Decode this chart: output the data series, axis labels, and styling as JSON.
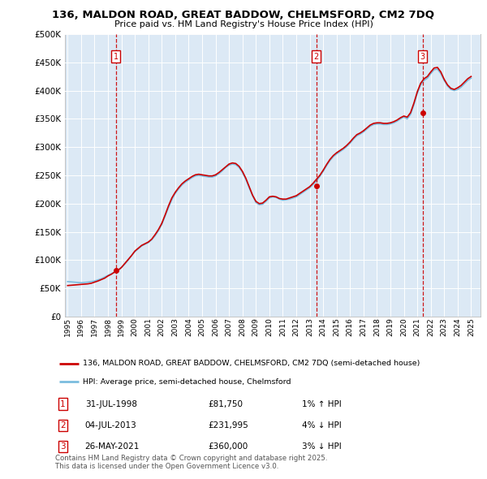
{
  "title": "136, MALDON ROAD, GREAT BADDOW, CHELMSFORD, CM2 7DQ",
  "subtitle": "Price paid vs. HM Land Registry's House Price Index (HPI)",
  "ytick_values": [
    0,
    50000,
    100000,
    150000,
    200000,
    250000,
    300000,
    350000,
    400000,
    450000,
    500000
  ],
  "ylim": [
    0,
    500000
  ],
  "xlim_start": 1994.8,
  "xlim_end": 2025.7,
  "hpi_color": "#7bbcde",
  "price_color": "#cc0000",
  "background_color": "#dce9f5",
  "sale_marker_color": "#cc0000",
  "sale_label_color": "#cc0000",
  "transactions": [
    {
      "num": 1,
      "date": "31-JUL-1998",
      "price": 81750,
      "x": 1998.58,
      "pct": "1%",
      "dir": "↑"
    },
    {
      "num": 2,
      "date": "04-JUL-2013",
      "price": 231995,
      "x": 2013.5,
      "pct": "4%",
      "dir": "↓"
    },
    {
      "num": 3,
      "date": "26-MAY-2021",
      "price": 360000,
      "x": 2021.4,
      "pct": "3%",
      "dir": "↓"
    }
  ],
  "legend_house_label": "136, MALDON ROAD, GREAT BADDOW, CHELMSFORD, CM2 7DQ (semi-detached house)",
  "legend_hpi_label": "HPI: Average price, semi-detached house, Chelmsford",
  "footnote": "Contains HM Land Registry data © Crown copyright and database right 2025.\nThis data is licensed under the Open Government Licence v3.0.",
  "hpi_data_x": [
    1995.0,
    1995.25,
    1995.5,
    1995.75,
    1996.0,
    1996.25,
    1996.5,
    1996.75,
    1997.0,
    1997.25,
    1997.5,
    1997.75,
    1998.0,
    1998.25,
    1998.5,
    1998.75,
    1999.0,
    1999.25,
    1999.5,
    1999.75,
    2000.0,
    2000.25,
    2000.5,
    2000.75,
    2001.0,
    2001.25,
    2001.5,
    2001.75,
    2002.0,
    2002.25,
    2002.5,
    2002.75,
    2003.0,
    2003.25,
    2003.5,
    2003.75,
    2004.0,
    2004.25,
    2004.5,
    2004.75,
    2005.0,
    2005.25,
    2005.5,
    2005.75,
    2006.0,
    2006.25,
    2006.5,
    2006.75,
    2007.0,
    2007.25,
    2007.5,
    2007.75,
    2008.0,
    2008.25,
    2008.5,
    2008.75,
    2009.0,
    2009.25,
    2009.5,
    2009.75,
    2010.0,
    2010.25,
    2010.5,
    2010.75,
    2011.0,
    2011.25,
    2011.5,
    2011.75,
    2012.0,
    2012.25,
    2012.5,
    2012.75,
    2013.0,
    2013.25,
    2013.5,
    2013.75,
    2014.0,
    2014.25,
    2014.5,
    2014.75,
    2015.0,
    2015.25,
    2015.5,
    2015.75,
    2016.0,
    2016.25,
    2016.5,
    2016.75,
    2017.0,
    2017.25,
    2017.5,
    2017.75,
    2018.0,
    2018.25,
    2018.5,
    2018.75,
    2019.0,
    2019.25,
    2019.5,
    2019.75,
    2020.0,
    2020.25,
    2020.5,
    2020.75,
    2021.0,
    2021.25,
    2021.5,
    2021.75,
    2022.0,
    2022.25,
    2022.5,
    2022.75,
    2023.0,
    2023.25,
    2023.5,
    2023.75,
    2024.0,
    2024.25,
    2024.5,
    2024.75,
    2025.0
  ],
  "hpi_data_y": [
    62000,
    61500,
    61000,
    60500,
    60000,
    60500,
    61000,
    62000,
    63000,
    65000,
    67000,
    70000,
    73000,
    76000,
    79000,
    82000,
    87000,
    93000,
    100000,
    108000,
    115000,
    120000,
    125000,
    128000,
    131000,
    136000,
    143000,
    152000,
    163000,
    178000,
    193000,
    207000,
    218000,
    226000,
    233000,
    238000,
    242000,
    246000,
    249000,
    250000,
    249000,
    248000,
    247000,
    247000,
    249000,
    253000,
    258000,
    264000,
    268000,
    270000,
    269000,
    264000,
    255000,
    243000,
    228000,
    214000,
    202000,
    198000,
    199000,
    204000,
    210000,
    212000,
    211000,
    208000,
    206000,
    207000,
    208000,
    210000,
    212000,
    216000,
    220000,
    224000,
    228000,
    234000,
    240000,
    248000,
    257000,
    267000,
    276000,
    283000,
    288000,
    292000,
    296000,
    301000,
    307000,
    314000,
    320000,
    323000,
    327000,
    332000,
    337000,
    340000,
    341000,
    341000,
    340000,
    340000,
    341000,
    343000,
    346000,
    350000,
    353000,
    350000,
    358000,
    375000,
    395000,
    410000,
    418000,
    422000,
    430000,
    437000,
    438000,
    430000,
    418000,
    408000,
    402000,
    400000,
    402000,
    406000,
    412000,
    418000,
    422000
  ],
  "price_data_x": [
    1995.0,
    1995.25,
    1995.5,
    1995.75,
    1996.0,
    1996.25,
    1996.5,
    1996.75,
    1997.0,
    1997.25,
    1997.5,
    1997.75,
    1998.0,
    1998.25,
    1998.5,
    1998.75,
    1999.0,
    1999.25,
    1999.5,
    1999.75,
    2000.0,
    2000.25,
    2000.5,
    2000.75,
    2001.0,
    2001.25,
    2001.5,
    2001.75,
    2002.0,
    2002.25,
    2002.5,
    2002.75,
    2003.0,
    2003.25,
    2003.5,
    2003.75,
    2004.0,
    2004.25,
    2004.5,
    2004.75,
    2005.0,
    2005.25,
    2005.5,
    2005.75,
    2006.0,
    2006.25,
    2006.5,
    2006.75,
    2007.0,
    2007.25,
    2007.5,
    2007.75,
    2008.0,
    2008.25,
    2008.5,
    2008.75,
    2009.0,
    2009.25,
    2009.5,
    2009.75,
    2010.0,
    2010.25,
    2010.5,
    2010.75,
    2011.0,
    2011.25,
    2011.5,
    2011.75,
    2012.0,
    2012.25,
    2012.5,
    2012.75,
    2013.0,
    2013.25,
    2013.5,
    2013.75,
    2014.0,
    2014.25,
    2014.5,
    2014.75,
    2015.0,
    2015.25,
    2015.5,
    2015.75,
    2016.0,
    2016.25,
    2016.5,
    2016.75,
    2017.0,
    2017.25,
    2017.5,
    2017.75,
    2018.0,
    2018.25,
    2018.5,
    2018.75,
    2019.0,
    2019.25,
    2019.5,
    2019.75,
    2020.0,
    2020.25,
    2020.5,
    2020.75,
    2021.0,
    2021.25,
    2021.5,
    2021.75,
    2022.0,
    2022.25,
    2022.5,
    2022.75,
    2023.0,
    2023.25,
    2023.5,
    2023.75,
    2024.0,
    2024.25,
    2024.5,
    2024.75,
    2025.0
  ],
  "price_data_y": [
    55000,
    55500,
    56000,
    56500,
    57000,
    57500,
    58000,
    59000,
    61000,
    63000,
    65500,
    68000,
    72000,
    75000,
    79000,
    82000,
    87000,
    94000,
    101000,
    108000,
    116000,
    121000,
    126000,
    129000,
    132000,
    137000,
    145000,
    154000,
    165000,
    180000,
    196000,
    210000,
    220000,
    228000,
    235000,
    240000,
    244000,
    248000,
    251000,
    252000,
    251000,
    250000,
    249000,
    249000,
    251000,
    255000,
    260000,
    265000,
    270000,
    272000,
    271000,
    266000,
    257000,
    245000,
    230000,
    215000,
    204000,
    200000,
    201000,
    206000,
    212000,
    213000,
    212000,
    209000,
    208000,
    208000,
    210000,
    212000,
    214000,
    218000,
    222000,
    226000,
    230000,
    236000,
    243000,
    250000,
    259000,
    269000,
    278000,
    285000,
    290000,
    294000,
    298000,
    303000,
    309000,
    316000,
    322000,
    325000,
    329000,
    334000,
    339000,
    342000,
    343000,
    343000,
    342000,
    342000,
    343000,
    345000,
    348000,
    352000,
    355000,
    353000,
    361000,
    378000,
    398000,
    413000,
    421000,
    425000,
    433000,
    440000,
    441000,
    433000,
    420000,
    410000,
    404000,
    402000,
    405000,
    409000,
    415000,
    421000,
    425000
  ]
}
